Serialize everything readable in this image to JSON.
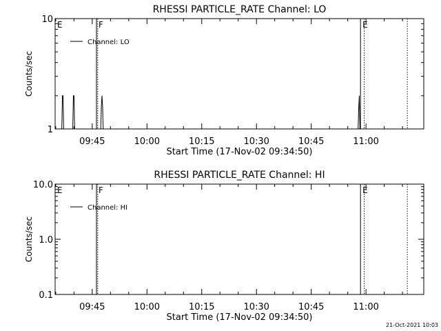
{
  "chart_data": [
    {
      "type": "line",
      "title": "RHESSI PARTICLE_RATE Channel: LO",
      "xlabel": "Start Time (17-Nov-02 09:34:50)",
      "ylabel": "Counts/sec",
      "y_scale": "log",
      "xlim": [
        "09:34:50",
        "11:15:50"
      ],
      "ylim": [
        1,
        10
      ],
      "x_ticks": [
        "09:45",
        "10:00",
        "10:15",
        "10:30",
        "10:45",
        "11:00"
      ],
      "y_tick_labels": [
        {
          "value": 1,
          "label": "1"
        },
        {
          "value": 10,
          "label": "10"
        }
      ],
      "legend": {
        "placement": "top-left",
        "entries": [
          {
            "name": "Channel: LO",
            "color": "#000000"
          }
        ]
      },
      "series": [
        {
          "name": "Channel: LO",
          "x": [
            "09:36:40",
            "09:36:50",
            "09:37:00",
            "09:37:10",
            "09:39:40",
            "09:39:50",
            "09:40:00",
            "09:40:10",
            "09:47:20",
            "09:47:30",
            "09:47:40",
            "09:47:50",
            "09:48:00",
            "10:57:50",
            "10:58:00",
            "10:58:10",
            "10:58:20"
          ],
          "y": [
            1,
            2,
            2,
            1,
            1,
            2,
            2,
            1,
            1,
            1.6,
            2,
            1.6,
            1,
            1,
            1.5,
            2,
            1
          ]
        }
      ],
      "markers": [
        {
          "label": "E",
          "time": "09:34:50",
          "style": "solid"
        },
        {
          "label": "F",
          "time": "09:46:10",
          "style": "solid"
        },
        {
          "label": "",
          "time": "09:46:30",
          "style": "dotted"
        },
        {
          "label": "E",
          "time": "10:58:30",
          "style": "solid"
        },
        {
          "label": "",
          "time": "10:59:30",
          "style": "dotted"
        },
        {
          "label": "",
          "time": "11:11:20",
          "style": "dotted"
        }
      ]
    },
    {
      "type": "line",
      "title": "RHESSI PARTICLE_RATE Channel: HI",
      "xlabel": "Start Time (17-Nov-02 09:34:50)",
      "ylabel": "Counts/sec",
      "y_scale": "log",
      "xlim": [
        "09:34:50",
        "11:15:50"
      ],
      "ylim": [
        0.1,
        10
      ],
      "x_ticks": [
        "09:45",
        "10:00",
        "10:15",
        "10:30",
        "10:45",
        "11:00"
      ],
      "y_tick_labels": [
        {
          "value": 0.1,
          "label": "0.1"
        },
        {
          "value": 1,
          "label": "1.0"
        },
        {
          "value": 10,
          "label": "10.0"
        }
      ],
      "legend": {
        "placement": "top-left",
        "entries": [
          {
            "name": "Channel: HI",
            "color": "#000000"
          }
        ]
      },
      "series": [
        {
          "name": "Channel: HI",
          "x": [],
          "y": []
        }
      ],
      "markers": [
        {
          "label": "E",
          "time": "09:34:50",
          "style": "solid"
        },
        {
          "label": "F",
          "time": "09:46:10",
          "style": "solid"
        },
        {
          "label": "",
          "time": "09:46:30",
          "style": "dotted"
        },
        {
          "label": "E",
          "time": "10:58:30",
          "style": "solid"
        },
        {
          "label": "",
          "time": "10:59:30",
          "style": "dotted"
        },
        {
          "label": "",
          "time": "11:11:20",
          "style": "dotted"
        }
      ]
    }
  ],
  "footer": {
    "timestamp": "21-Oct-2021 10:03"
  }
}
